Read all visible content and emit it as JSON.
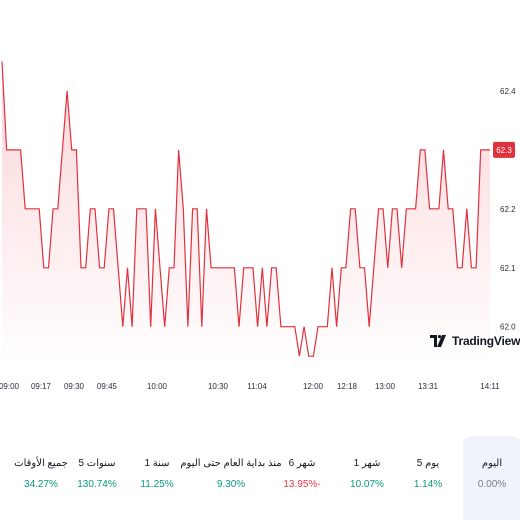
{
  "colors": {
    "line": "#e0313e",
    "fill_top": "#fbd5d8",
    "fill_bottom": "#ffffff",
    "badge_bg": "#e0313e",
    "positive": "#089981",
    "negative": "#f23645",
    "neutral": "#787b86"
  },
  "chart_data": {
    "type": "area",
    "y_ticks": [
      "62.4",
      "62.3",
      "62.2",
      "62.1",
      "62.0"
    ],
    "ylim": [
      61.93,
      62.5
    ],
    "last_price_label": "62.3",
    "x_ticks": [
      "09:00",
      "09:17",
      "09:30",
      "09:45",
      "10:00",
      "10:30",
      "11:04",
      "12:00",
      "12:18",
      "13:00",
      "13:31",
      "14:11"
    ],
    "values": [
      62.45,
      62.3,
      62.3,
      62.3,
      62.3,
      62.2,
      62.2,
      62.2,
      62.2,
      62.1,
      62.1,
      62.2,
      62.2,
      62.3,
      62.4,
      62.3,
      62.3,
      62.1,
      62.1,
      62.2,
      62.2,
      62.1,
      62.1,
      62.2,
      62.2,
      62.1,
      62.0,
      62.1,
      62.0,
      62.2,
      62.2,
      62.2,
      62.0,
      62.2,
      62.1,
      62.0,
      62.1,
      62.1,
      62.3,
      62.2,
      62.0,
      62.2,
      62.2,
      62.0,
      62.2,
      62.1,
      62.1,
      62.1,
      62.1,
      62.1,
      62.1,
      62.0,
      62.1,
      62.1,
      62.1,
      62.0,
      62.1,
      62.0,
      62.1,
      62.1,
      62.0,
      62.0,
      62.0,
      62.0,
      61.95,
      62.0,
      61.95,
      61.95,
      62.0,
      62.0,
      62.0,
      62.1,
      62.0,
      62.1,
      62.1,
      62.2,
      62.2,
      62.1,
      62.1,
      62.0,
      62.1,
      62.2,
      62.2,
      62.1,
      62.2,
      62.2,
      62.1,
      62.2,
      62.2,
      62.2,
      62.3,
      62.3,
      62.2,
      62.2,
      62.2,
      62.3,
      62.2,
      62.2,
      62.1,
      62.1,
      62.2,
      62.1,
      62.1,
      62.3,
      62.3,
      62.3
    ]
  },
  "branding": {
    "logo_text": "TradingView"
  },
  "performance": [
    {
      "label": "اليوم",
      "value": "0.00%",
      "tone": "neutral",
      "selected": true
    },
    {
      "label": "5 يوم",
      "value": "1.14%",
      "tone": "positive",
      "selected": false
    },
    {
      "label": "1 شهر",
      "value": "10.07%",
      "tone": "positive",
      "selected": false
    },
    {
      "label": "6 شهر",
      "value": "13.95%-",
      "tone": "negative",
      "selected": false
    },
    {
      "label": "منذ بداية العام حتى اليوم",
      "value": "9.30%",
      "tone": "positive",
      "selected": false
    },
    {
      "label": "1 سنة",
      "value": "11.25%",
      "tone": "positive",
      "selected": false
    },
    {
      "label": "5 سنوات",
      "value": "130.74%",
      "tone": "positive",
      "selected": false
    },
    {
      "label": "جميع الأوقات",
      "value": "34.27%",
      "tone": "positive",
      "selected": false
    }
  ]
}
